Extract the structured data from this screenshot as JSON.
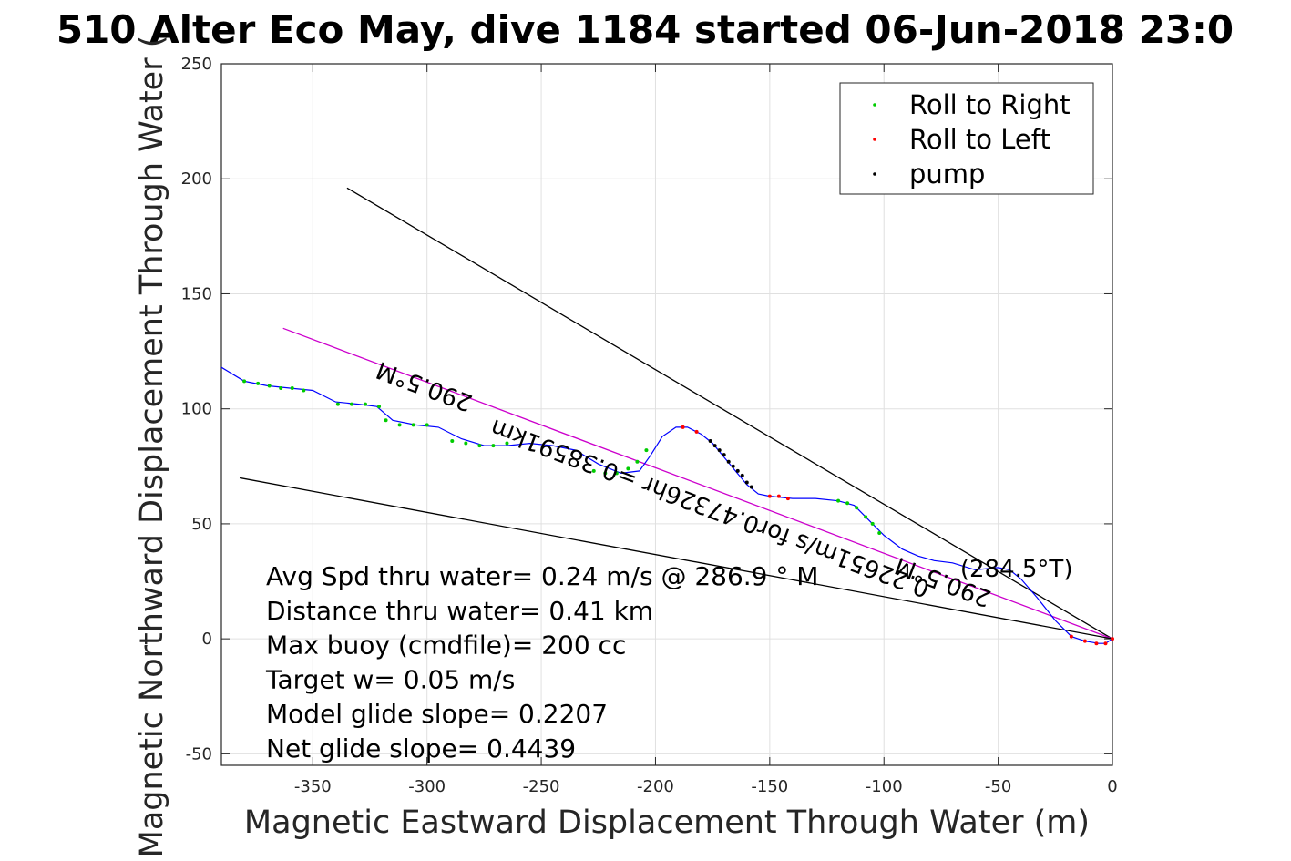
{
  "chart_data": {
    "type": "line",
    "title": "510 Alter Eco May, dive 1184 started 06-Jun-2018 23:0",
    "xlabel": "Magnetic Eastward Displacement Through Water (m)",
    "ylabel": "Magnetic Northward Displacement Through Water (",
    "xlim": [
      -390,
      0
    ],
    "ylim": [
      -55,
      250
    ],
    "xticks": [
      -350,
      -300,
      -250,
      -200,
      -150,
      -100,
      -50,
      0
    ],
    "yticks": [
      -50,
      0,
      50,
      100,
      150,
      200,
      250
    ],
    "xtick_labels": [
      "-350",
      "-300",
      "-250",
      "-200",
      "-150",
      "-100",
      "-50",
      "0"
    ],
    "ytick_labels": [
      "-50",
      "0",
      "50",
      "100",
      "150",
      "200",
      "250"
    ],
    "grid": true,
    "legend_position": "top-right",
    "legend": [
      {
        "label": "Roll to Right",
        "color": "#00cc00"
      },
      {
        "label": "Roll to Left",
        "color": "#ff0000"
      },
      {
        "label": "pump",
        "color": "#000000"
      }
    ],
    "track": {
      "color": "#0000ff",
      "points": [
        [
          -390,
          118
        ],
        [
          -380,
          112
        ],
        [
          -370,
          110
        ],
        [
          -360,
          109
        ],
        [
          -350,
          108
        ],
        [
          -340,
          103
        ],
        [
          -330,
          102
        ],
        [
          -322,
          101
        ],
        [
          -315,
          95
        ],
        [
          -305,
          93
        ],
        [
          -295,
          92
        ],
        [
          -285,
          87
        ],
        [
          -275,
          84
        ],
        [
          -265,
          84
        ],
        [
          -255,
          85
        ],
        [
          -245,
          84
        ],
        [
          -235,
          82
        ],
        [
          -225,
          76
        ],
        [
          -215,
          72
        ],
        [
          -207,
          73
        ],
        [
          -202,
          80
        ],
        [
          -197,
          88
        ],
        [
          -191,
          92
        ],
        [
          -186,
          92
        ],
        [
          -180,
          89
        ],
        [
          -175,
          85
        ],
        [
          -170,
          79
        ],
        [
          -165,
          73
        ],
        [
          -160,
          67
        ],
        [
          -155,
          63
        ],
        [
          -150,
          62
        ],
        [
          -140,
          61
        ],
        [
          -130,
          61
        ],
        [
          -120,
          60
        ],
        [
          -113,
          58
        ],
        [
          -107,
          52
        ],
        [
          -100,
          45
        ],
        [
          -92,
          39
        ],
        [
          -85,
          36
        ],
        [
          -78,
          34
        ],
        [
          -70,
          33
        ],
        [
          -60,
          30
        ],
        [
          -50,
          31
        ],
        [
          -45,
          30
        ],
        [
          -40,
          26
        ],
        [
          -33,
          18
        ],
        [
          -25,
          8
        ],
        [
          -18,
          1
        ],
        [
          -12,
          -1
        ],
        [
          -6,
          -2
        ],
        [
          -3,
          -2
        ],
        [
          0,
          0
        ]
      ]
    },
    "roll_right_points": [
      [
        -380,
        112
      ],
      [
        -374,
        111
      ],
      [
        -369,
        110
      ],
      [
        -364,
        109
      ],
      [
        -359,
        109
      ],
      [
        -354,
        108
      ],
      [
        -339,
        102
      ],
      [
        -333,
        102
      ],
      [
        -327,
        102
      ],
      [
        -321,
        101
      ],
      [
        -318,
        95
      ],
      [
        -312,
        93
      ],
      [
        -306,
        93
      ],
      [
        -300,
        93
      ],
      [
        -289,
        86
      ],
      [
        -283,
        85
      ],
      [
        -277,
        84
      ],
      [
        -271,
        84
      ],
      [
        -265,
        85
      ],
      [
        -227,
        73
      ],
      [
        -222,
        72
      ],
      [
        -217,
        72
      ],
      [
        -212,
        74
      ],
      [
        -208,
        77
      ],
      [
        -204,
        82
      ],
      [
        -120,
        60
      ],
      [
        -116,
        59
      ],
      [
        -112,
        57
      ],
      [
        -108,
        53
      ],
      [
        -105,
        50
      ],
      [
        -102,
        46
      ]
    ],
    "roll_left_points": [
      [
        -188,
        92
      ],
      [
        -182,
        90
      ],
      [
        -150,
        62
      ],
      [
        -146,
        62
      ],
      [
        -142,
        61
      ],
      [
        -18,
        1
      ],
      [
        -12,
        -1
      ],
      [
        -7,
        -2
      ],
      [
        -3,
        -2
      ],
      [
        0,
        0
      ]
    ],
    "pump_points": [
      [
        -176,
        86
      ],
      [
        -174,
        84
      ],
      [
        -172,
        82
      ],
      [
        -170,
        80
      ],
      [
        -168,
        77
      ],
      [
        -166,
        75
      ],
      [
        -164,
        73
      ],
      [
        -162,
        71
      ],
      [
        -160,
        68
      ],
      [
        -158,
        66
      ]
    ],
    "lines": [
      {
        "name": "upper",
        "color": "#000000",
        "from": [
          -335,
          196
        ],
        "to": [
          0,
          0
        ]
      },
      {
        "name": "mid",
        "color": "#cc00cc",
        "from": [
          -363,
          135
        ],
        "to": [
          0,
          0
        ]
      },
      {
        "name": "lower",
        "color": "#000000",
        "from": [
          -382,
          70
        ],
        "to": [
          0,
          0
        ]
      }
    ],
    "annotations": [
      {
        "text": "290.5°M",
        "x": -300,
        "y": 113,
        "angle_deg": 200.5
      },
      {
        "text": "0.22651m/s for0.47326hr =0.38591km",
        "x": -175,
        "y": 60,
        "angle_deg": 200.5
      },
      {
        "text": "290.5°M",
        "x": -73,
        "y": 28,
        "angle_deg": 200.5
      },
      {
        "text": "(284.5°T)",
        "x": -42,
        "y": 27,
        "angle_deg": 0
      }
    ],
    "stats": [
      "Avg Spd thru water=  0.24 m/s @ 286.9 ° M",
      "Distance thru water=  0.41 km",
      "Max buoy (cmdfile)= 200 cc",
      "Target w= 0.05 m/s",
      "Model glide slope= 0.2207",
      "Net glide slope= 0.4439"
    ]
  }
}
